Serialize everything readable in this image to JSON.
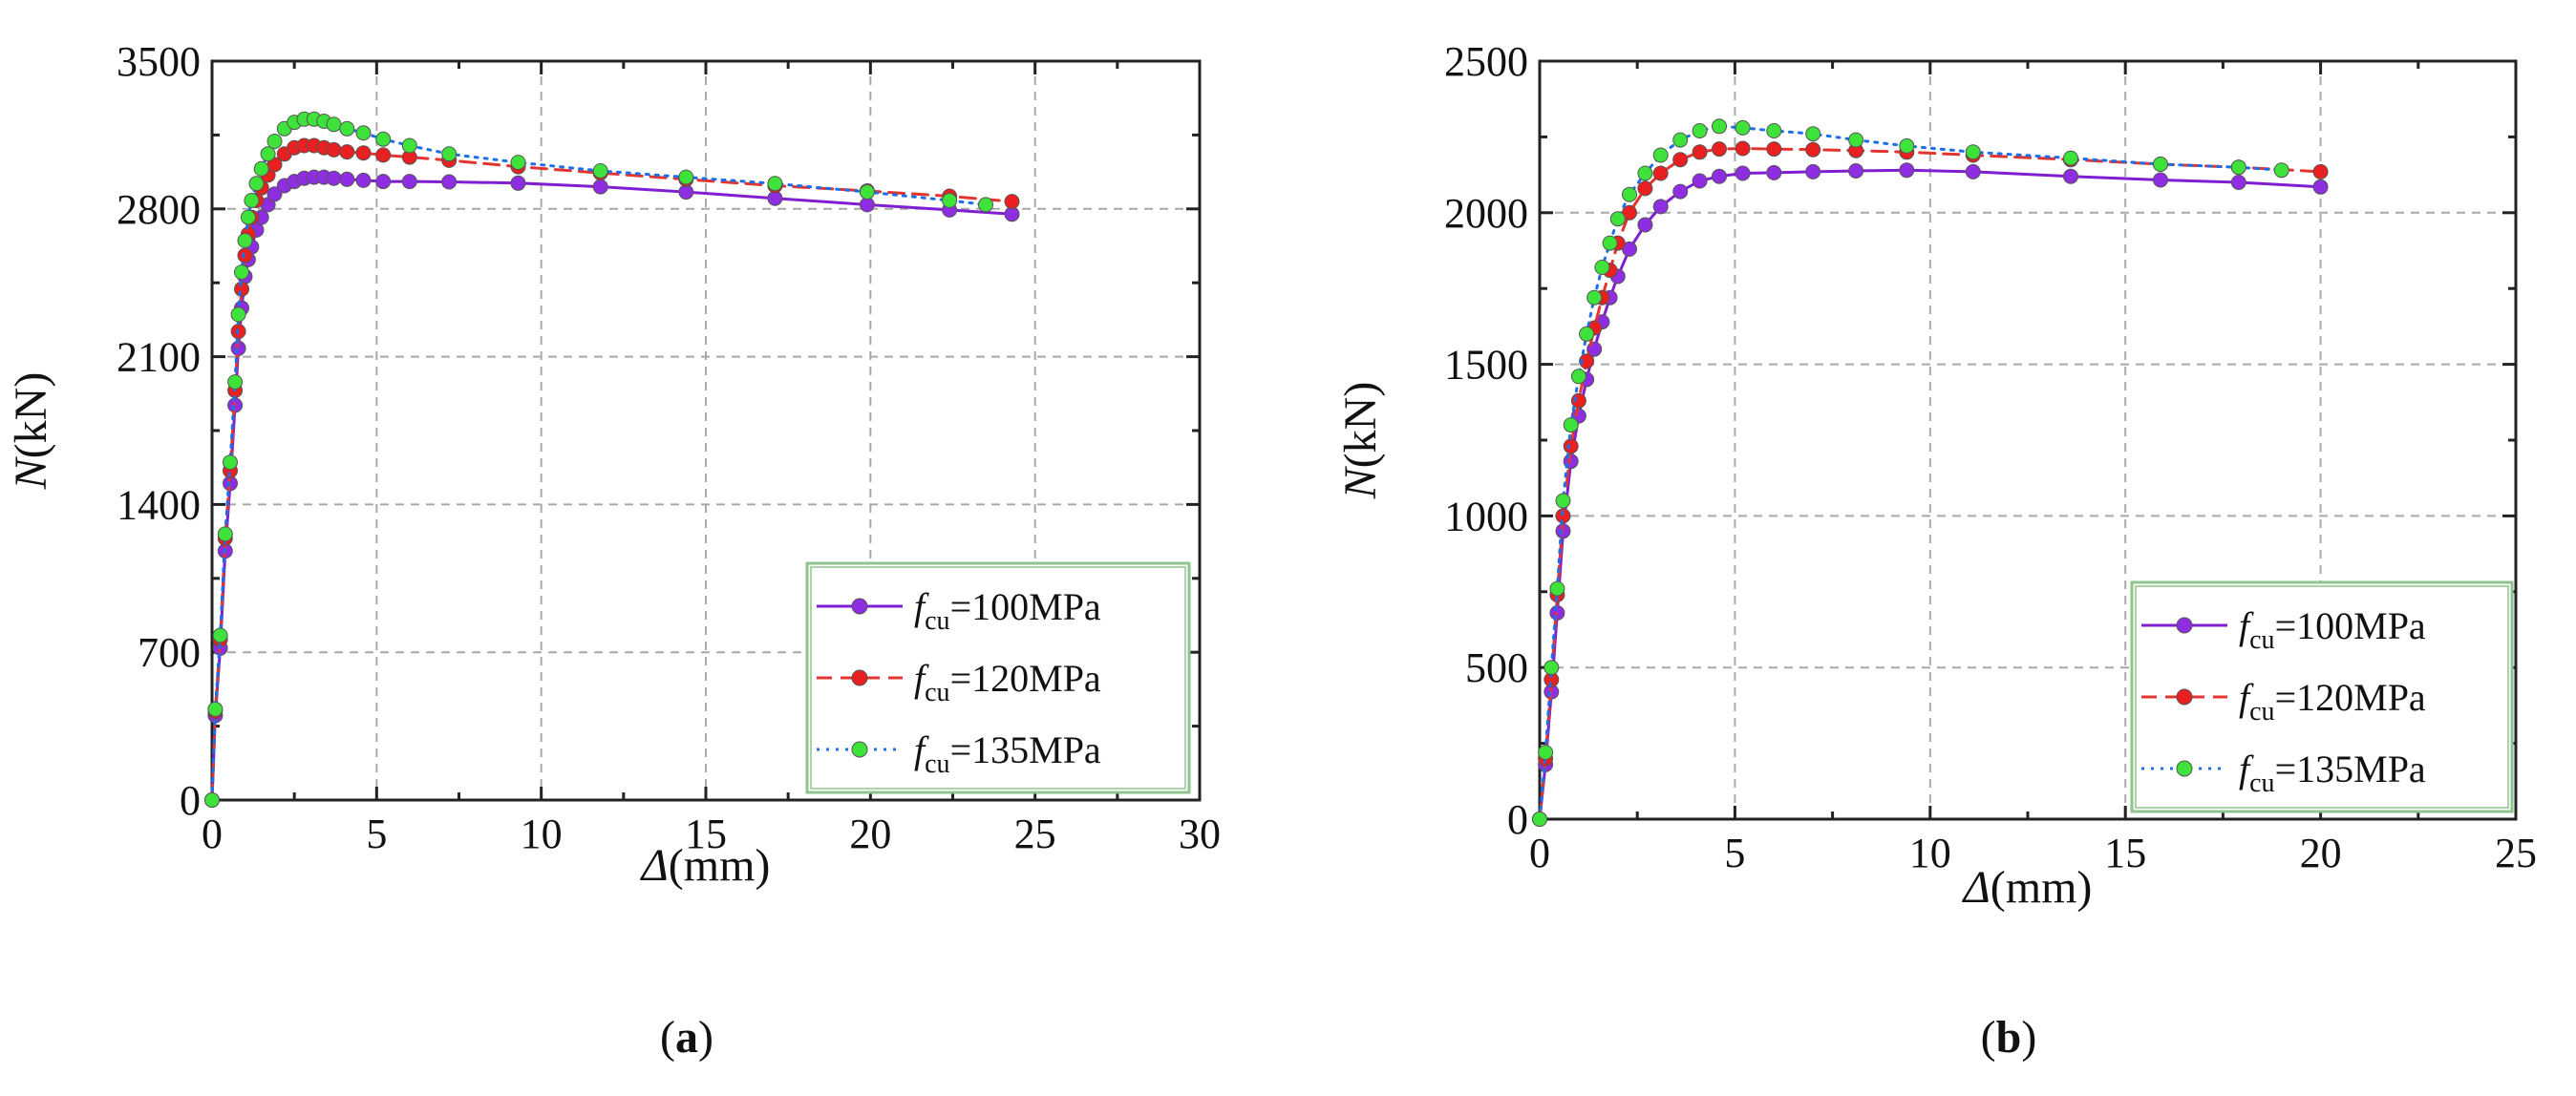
{
  "chart_data": [
    {
      "type": "line",
      "panel_label": {
        "open": "(",
        "letter": "a",
        "close": ")"
      },
      "xlabel": {
        "symbol": "Δ",
        "unit": "(mm)"
      },
      "ylabel": {
        "symbol": "N",
        "unit": "(kN)"
      },
      "xlim": [
        0,
        30
      ],
      "ylim": [
        0,
        3500
      ],
      "xticks": [
        0,
        5,
        10,
        15,
        20,
        25,
        30
      ],
      "yticks": [
        0,
        700,
        1400,
        2100,
        2800,
        3500
      ],
      "grid": true,
      "legend_position": "bottom-right",
      "series": [
        {
          "label": {
            "base": "f",
            "sub": "cu",
            "rest": "=100MPa"
          },
          "color": "#7f1fd1",
          "line_style": "solid",
          "marker_color": "#8e2de2",
          "x": [
            0,
            0.1,
            0.25,
            0.4,
            0.55,
            0.7,
            0.8,
            0.9,
            1.0,
            1.1,
            1.2,
            1.35,
            1.5,
            1.7,
            1.9,
            2.2,
            2.5,
            2.8,
            3.1,
            3.4,
            3.7,
            4.1,
            4.6,
            5.2,
            6.0,
            7.2,
            9.3,
            11.8,
            14.4,
            17.1,
            19.9,
            22.4,
            24.3
          ],
          "y": [
            0,
            400,
            720,
            1180,
            1500,
            1870,
            2140,
            2330,
            2480,
            2560,
            2620,
            2700,
            2760,
            2820,
            2870,
            2910,
            2930,
            2945,
            2950,
            2950,
            2945,
            2940,
            2935,
            2930,
            2930,
            2928,
            2922,
            2905,
            2880,
            2850,
            2820,
            2795,
            2775
          ]
        },
        {
          "label": {
            "base": "f",
            "sub": "cu",
            "rest": "=120MPa"
          },
          "color": "#e3342f",
          "line_style": "dashed",
          "marker_color": "#ea1f1f",
          "x": [
            0,
            0.1,
            0.25,
            0.4,
            0.55,
            0.7,
            0.8,
            0.9,
            1.0,
            1.1,
            1.2,
            1.35,
            1.5,
            1.7,
            1.9,
            2.2,
            2.5,
            2.8,
            3.1,
            3.4,
            3.7,
            4.1,
            4.6,
            5.2,
            6.0,
            7.2,
            9.3,
            11.8,
            14.4,
            17.1,
            19.9,
            22.4,
            24.3
          ],
          "y": [
            0,
            420,
            760,
            1240,
            1560,
            1940,
            2220,
            2420,
            2580,
            2680,
            2760,
            2840,
            2900,
            2960,
            3010,
            3060,
            3090,
            3100,
            3100,
            3090,
            3080,
            3070,
            3065,
            3055,
            3045,
            3030,
            3000,
            2970,
            2940,
            2910,
            2885,
            2860,
            2835
          ]
        },
        {
          "label": {
            "base": "f",
            "sub": "cu",
            "rest": "=135MPa"
          },
          "color": "#1c6fe8",
          "line_style": "dotted",
          "marker_color": "#3ee23a",
          "x": [
            0,
            0.1,
            0.25,
            0.4,
            0.55,
            0.7,
            0.8,
            0.9,
            1.0,
            1.1,
            1.2,
            1.35,
            1.5,
            1.7,
            1.9,
            2.2,
            2.5,
            2.8,
            3.1,
            3.4,
            3.7,
            4.1,
            4.6,
            5.2,
            6.0,
            7.2,
            9.3,
            11.8,
            14.4,
            17.1,
            19.9,
            22.4,
            23.5
          ],
          "y": [
            0,
            430,
            780,
            1260,
            1600,
            1980,
            2300,
            2500,
            2650,
            2760,
            2840,
            2920,
            2990,
            3060,
            3120,
            3180,
            3210,
            3225,
            3225,
            3215,
            3200,
            3180,
            3160,
            3130,
            3100,
            3060,
            3020,
            2980,
            2950,
            2920,
            2880,
            2840,
            2820
          ]
        }
      ]
    },
    {
      "type": "line",
      "panel_label": {
        "open": "(",
        "letter": "b",
        "close": ")"
      },
      "xlabel": {
        "symbol": "Δ",
        "unit": "(mm)"
      },
      "ylabel": {
        "symbol": "N",
        "unit": "(kN)"
      },
      "xlim": [
        0,
        25
      ],
      "ylim": [
        0,
        2500
      ],
      "xticks": [
        0,
        5,
        10,
        15,
        20,
        25
      ],
      "yticks": [
        0,
        500,
        1000,
        1500,
        2000,
        2500
      ],
      "grid": true,
      "legend_position": "bottom-right",
      "series": [
        {
          "label": {
            "base": "f",
            "sub": "cu",
            "rest": "=100MPa"
          },
          "color": "#7f1fd1",
          "line_style": "solid",
          "marker_color": "#8e2de2",
          "x": [
            0,
            0.15,
            0.3,
            0.45,
            0.6,
            0.8,
            1.0,
            1.2,
            1.4,
            1.6,
            1.8,
            2.0,
            2.3,
            2.7,
            3.1,
            3.6,
            4.1,
            4.6,
            5.2,
            6.0,
            7.0,
            8.1,
            9.4,
            11.1,
            13.6,
            15.9,
            17.9,
            20.0
          ],
          "y": [
            0,
            180,
            420,
            680,
            950,
            1180,
            1330,
            1450,
            1550,
            1640,
            1720,
            1790,
            1880,
            1960,
            2020,
            2070,
            2105,
            2120,
            2130,
            2132,
            2135,
            2138,
            2140,
            2135,
            2120,
            2108,
            2100,
            2085
          ]
        },
        {
          "label": {
            "base": "f",
            "sub": "cu",
            "rest": "=120MPa"
          },
          "color": "#e3342f",
          "line_style": "dashed",
          "marker_color": "#ea1f1f",
          "x": [
            0,
            0.15,
            0.3,
            0.45,
            0.6,
            0.8,
            1.0,
            1.2,
            1.4,
            1.6,
            1.8,
            2.0,
            2.3,
            2.7,
            3.1,
            3.6,
            4.1,
            4.6,
            5.2,
            6.0,
            7.0,
            8.1,
            9.4,
            11.1,
            13.6,
            15.9,
            17.9,
            20.0
          ],
          "y": [
            0,
            200,
            460,
            740,
            1000,
            1230,
            1380,
            1510,
            1620,
            1720,
            1810,
            1900,
            2000,
            2080,
            2130,
            2175,
            2200,
            2210,
            2212,
            2210,
            2208,
            2205,
            2200,
            2190,
            2175,
            2160,
            2150,
            2135
          ]
        },
        {
          "label": {
            "base": "f",
            "sub": "cu",
            "rest": "=135MPa"
          },
          "color": "#1c6fe8",
          "line_style": "dotted",
          "marker_color": "#3ee23a",
          "x": [
            0,
            0.15,
            0.3,
            0.45,
            0.6,
            0.8,
            1.0,
            1.2,
            1.4,
            1.6,
            1.8,
            2.0,
            2.3,
            2.7,
            3.1,
            3.6,
            4.1,
            4.6,
            5.2,
            6.0,
            7.0,
            8.1,
            9.4,
            11.1,
            13.6,
            15.9,
            17.9,
            19.0
          ],
          "y": [
            0,
            220,
            500,
            760,
            1050,
            1300,
            1460,
            1600,
            1720,
            1820,
            1900,
            1980,
            2060,
            2130,
            2190,
            2240,
            2270,
            2285,
            2280,
            2270,
            2260,
            2240,
            2220,
            2200,
            2180,
            2160,
            2150,
            2140
          ]
        }
      ]
    }
  ]
}
